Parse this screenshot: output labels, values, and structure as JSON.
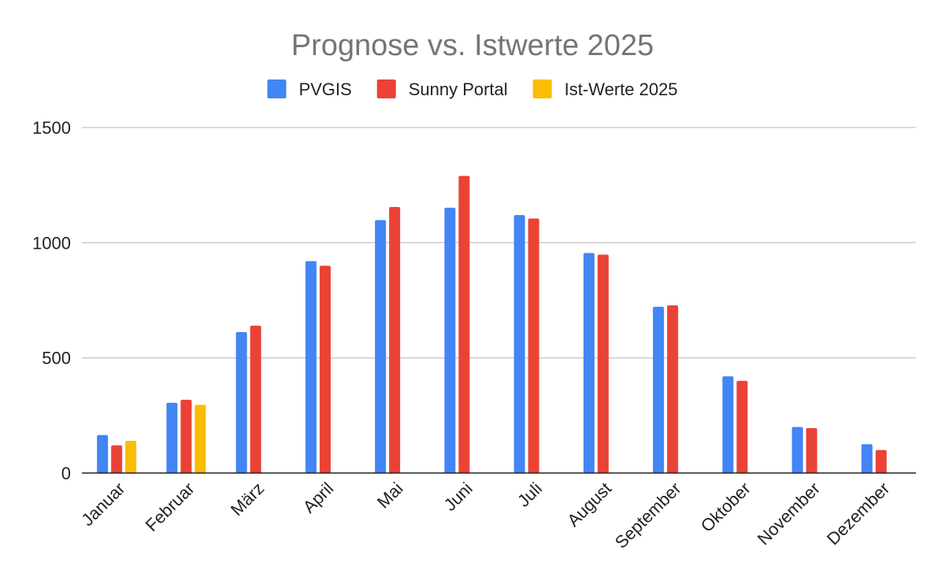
{
  "chart_data": {
    "type": "bar",
    "title": "Prognose vs. Istwerte 2025",
    "xlabel": "",
    "ylabel": "",
    "ylim": [
      0,
      1500
    ],
    "yticks": [
      0,
      500,
      1000,
      1500
    ],
    "grid": true,
    "legend_position": "top-center",
    "categories": [
      "Januar",
      "Februar",
      "März",
      "April",
      "Mai",
      "Juni",
      "Juli",
      "August",
      "September",
      "Oktober",
      "November",
      "Dezember"
    ],
    "series": [
      {
        "name": "PVGIS",
        "color": "#4285f4",
        "values": [
          165,
          305,
          612,
          920,
          1098,
          1152,
          1120,
          955,
          722,
          420,
          200,
          125
        ]
      },
      {
        "name": "Sunny Portal",
        "color": "#ea4335",
        "values": [
          120,
          318,
          640,
          900,
          1155,
          1290,
          1105,
          948,
          728,
          400,
          195,
          100
        ]
      },
      {
        "name": "Ist-Werte 2025",
        "color": "#fbbc04",
        "values": [
          140,
          296,
          null,
          null,
          null,
          null,
          null,
          null,
          null,
          null,
          null,
          null
        ]
      }
    ]
  }
}
